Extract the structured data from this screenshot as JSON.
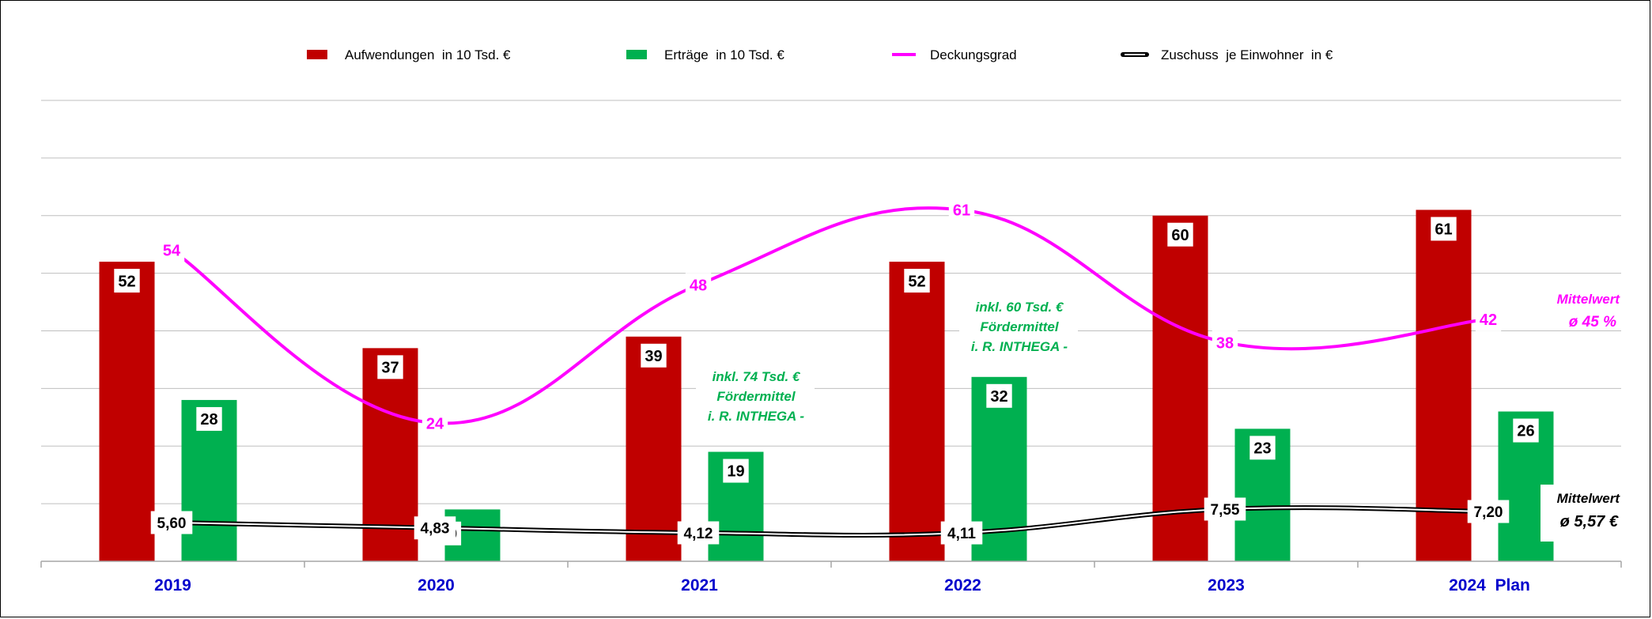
{
  "chart_data": {
    "type": "bar",
    "categories": [
      "2019",
      "2020",
      "2021",
      "2022",
      "2023",
      "2024  Plan"
    ],
    "series": [
      {
        "name": "Aufwendungen  in 10 Tsd. €",
        "kind": "bar",
        "color": "#C00000",
        "values": [
          52,
          37,
          39,
          52,
          60,
          61
        ],
        "labels": [
          "52",
          "37",
          "39",
          "52",
          "60",
          "61"
        ]
      },
      {
        "name": "Erträge  in 10 Tsd. €",
        "kind": "bar",
        "color": "#00B050",
        "values": [
          28,
          9,
          19,
          32,
          23,
          26
        ],
        "labels": [
          "28",
          "9",
          "19",
          "32",
          "23",
          "26"
        ]
      },
      {
        "name": "Deckungsgrad",
        "kind": "line",
        "color": "#FF00FF",
        "values": [
          54,
          24,
          48,
          61,
          38,
          42
        ],
        "labels": [
          "54",
          "24",
          "48",
          "61",
          "38",
          "42"
        ]
      },
      {
        "name": "Zuschuss  je Einwohner  in €",
        "kind": "line",
        "color": "#000000",
        "values": [
          5.6,
          4.83,
          4.12,
          4.11,
          7.55,
          7.2
        ],
        "labels": [
          "5,60",
          "4,83",
          "4,12",
          "4,11",
          "7,55",
          "7,20"
        ]
      }
    ],
    "ylim": [
      0,
      80
    ],
    "grid": true,
    "legend_position": "top",
    "annotations": {
      "note_2021": [
        "inkl. 74 Tsd. €",
        "Fördermittel",
        "i. R.  INTHEGA -"
      ],
      "note_2022": [
        "inkl. 60 Tsd. €",
        "Fördermittel",
        "i. R.  INTHEGA -"
      ],
      "mean_deckungsgrad": [
        "Mittelwert",
        "ø  45 %"
      ],
      "mean_zuschuss": [
        "Mittelwert",
        "ø  5,57 €"
      ]
    },
    "colors": {
      "axis_category": "#0000CC",
      "note": "#00B050",
      "mean_deckung": "#FF00FF",
      "mean_zuschuss": "#000000",
      "grid": "#BFBFBF"
    }
  }
}
